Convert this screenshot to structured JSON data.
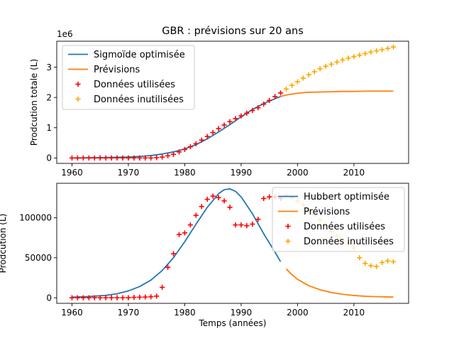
{
  "title": "GBR : prévisions sur 20 ans",
  "colors": {
    "blue": "#1f77b4",
    "orange": "#ff7f0e",
    "red": "#ff0000",
    "gold": "#ffa500"
  },
  "chart_data": [
    {
      "type": "line",
      "xlabel": "",
      "ylabel": "Prodcution totale (L)",
      "offset_label": "1e6",
      "xlim": [
        1957.3,
        2019.7
      ],
      "ylim": [
        -0.18,
        3.86
      ],
      "xticks": [
        1960,
        1970,
        1980,
        1990,
        2000,
        2010
      ],
      "yticks": [
        0,
        1,
        2,
        3
      ],
      "legend": [
        "Sigmoïde optimisée",
        "Prévisions",
        "Données utilisées",
        "Données inutilisées"
      ],
      "legend_position": "upper left",
      "grid": false,
      "series": [
        {
          "name": "Sigmoïde optimisée",
          "kind": "line",
          "x": [
            1960,
            1965,
            1970,
            1972,
            1974,
            1976,
            1978,
            1980,
            1982,
            1984,
            1986,
            1988,
            1990,
            1992,
            1994,
            1996,
            1997
          ],
          "y": [
            0.0,
            0.01,
            0.03,
            0.05,
            0.08,
            0.13,
            0.2,
            0.3,
            0.44,
            0.63,
            0.86,
            1.1,
            1.36,
            1.6,
            1.8,
            1.96,
            2.03
          ]
        },
        {
          "name": "Prévisions",
          "kind": "line",
          "x": [
            1997,
            1998,
            1999,
            2000,
            2001,
            2002,
            2004,
            2006,
            2008,
            2010,
            2013,
            2017
          ],
          "y": [
            2.03,
            2.08,
            2.11,
            2.14,
            2.16,
            2.17,
            2.18,
            2.19,
            2.2,
            2.2,
            2.21,
            2.21
          ]
        },
        {
          "name": "Données utilisées",
          "kind": "scatter",
          "x": [
            1960,
            1961,
            1962,
            1963,
            1964,
            1965,
            1966,
            1967,
            1968,
            1969,
            1970,
            1971,
            1972,
            1973,
            1974,
            1975,
            1976,
            1977,
            1978,
            1979,
            1980,
            1981,
            1982,
            1983,
            1984,
            1985,
            1986,
            1987,
            1988,
            1989,
            1990,
            1991,
            1992,
            1993,
            1994,
            1995,
            1996,
            1997
          ],
          "y": [
            0,
            0,
            0,
            0,
            0,
            0,
            0,
            0,
            0,
            0,
            0,
            0,
            0,
            0,
            0,
            0.01,
            0.03,
            0.07,
            0.12,
            0.2,
            0.28,
            0.37,
            0.47,
            0.59,
            0.71,
            0.84,
            0.97,
            1.09,
            1.2,
            1.3,
            1.39,
            1.48,
            1.57,
            1.66,
            1.78,
            1.9,
            2.03,
            2.15
          ]
        },
        {
          "name": "Données inutilisées",
          "kind": "scatter",
          "x": [
            1998,
            1999,
            2000,
            2001,
            2002,
            2003,
            2004,
            2005,
            2006,
            2007,
            2008,
            2009,
            2010,
            2011,
            2012,
            2013,
            2014,
            2015,
            2016,
            2017
          ],
          "y": [
            2.28,
            2.4,
            2.52,
            2.64,
            2.75,
            2.85,
            2.95,
            3.03,
            3.1,
            3.17,
            3.24,
            3.3,
            3.35,
            3.4,
            3.45,
            3.5,
            3.54,
            3.58,
            3.62,
            3.67
          ]
        }
      ]
    },
    {
      "type": "line",
      "xlabel": "Temps (années)",
      "ylabel": "Prodcution (L)",
      "xlim": [
        1957.3,
        2019.7
      ],
      "ylim": [
        -7000,
        143000
      ],
      "xticks": [
        1960,
        1970,
        1980,
        1990,
        2000,
        2010
      ],
      "yticks": [
        0,
        50000,
        100000
      ],
      "legend": [
        "Hubbert optimisée",
        "Prévisions",
        "Données utilisées",
        "Données inutilisées"
      ],
      "legend_position": "upper right",
      "grid": false,
      "series": [
        {
          "name": "Hubbert optimisée",
          "kind": "line",
          "x": [
            1960,
            1963,
            1966,
            1968,
            1970,
            1972,
            1974,
            1976,
            1978,
            1980,
            1982,
            1984,
            1986,
            1987,
            1988,
            1989,
            1990,
            1992,
            1994,
            1996,
            1997
          ],
          "y": [
            700,
            1500,
            3000,
            5000,
            8500,
            14000,
            22000,
            34000,
            50000,
            70000,
            92000,
            113000,
            130000,
            135000,
            136000,
            133000,
            126000,
            105000,
            80000,
            57000,
            45000
          ]
        },
        {
          "name": "Prévisions",
          "kind": "line",
          "x": [
            1998,
            1999,
            2000,
            2002,
            2004,
            2006,
            2008,
            2010,
            2012,
            2014,
            2017
          ],
          "y": [
            36000,
            29000,
            23000,
            15000,
            10000,
            6500,
            4300,
            2800,
            1900,
            1300,
            800
          ]
        },
        {
          "name": "Données utilisées",
          "kind": "scatter",
          "x": [
            1960,
            1961,
            1962,
            1963,
            1964,
            1965,
            1966,
            1967,
            1968,
            1969,
            1970,
            1971,
            1972,
            1973,
            1974,
            1975,
            1976,
            1977,
            1978,
            1979,
            1980,
            1981,
            1982,
            1983,
            1984,
            1985,
            1986,
            1987,
            1988,
            1989,
            1990,
            1991,
            1992,
            1993,
            1994,
            1995,
            1996,
            1997
          ],
          "y": [
            0,
            0,
            0,
            0,
            0,
            0,
            0,
            0,
            0,
            0,
            0,
            500,
            700,
            900,
            1200,
            2000,
            13000,
            38000,
            55000,
            79000,
            81000,
            91000,
            103000,
            114000,
            123000,
            127000,
            125000,
            121000,
            113000,
            91000,
            91000,
            90000,
            92000,
            98000,
            124000,
            126000,
            126000,
            124000
          ]
        },
        {
          "name": "Données inutilisées",
          "kind": "scatter",
          "x": [
            1998,
            1999,
            2000,
            2001,
            2002,
            2003,
            2004,
            2005,
            2006,
            2007,
            2008,
            2009,
            2010,
            2011,
            2012,
            2013,
            2014,
            2015,
            2016,
            2017
          ],
          "y": [
            128000,
            125000,
            121000,
            116000,
            110000,
            104000,
            97000,
            90000,
            83000,
            77000,
            71000,
            67000,
            62000,
            50000,
            43000,
            40000,
            39000,
            44000,
            46000,
            45000
          ]
        }
      ]
    }
  ]
}
